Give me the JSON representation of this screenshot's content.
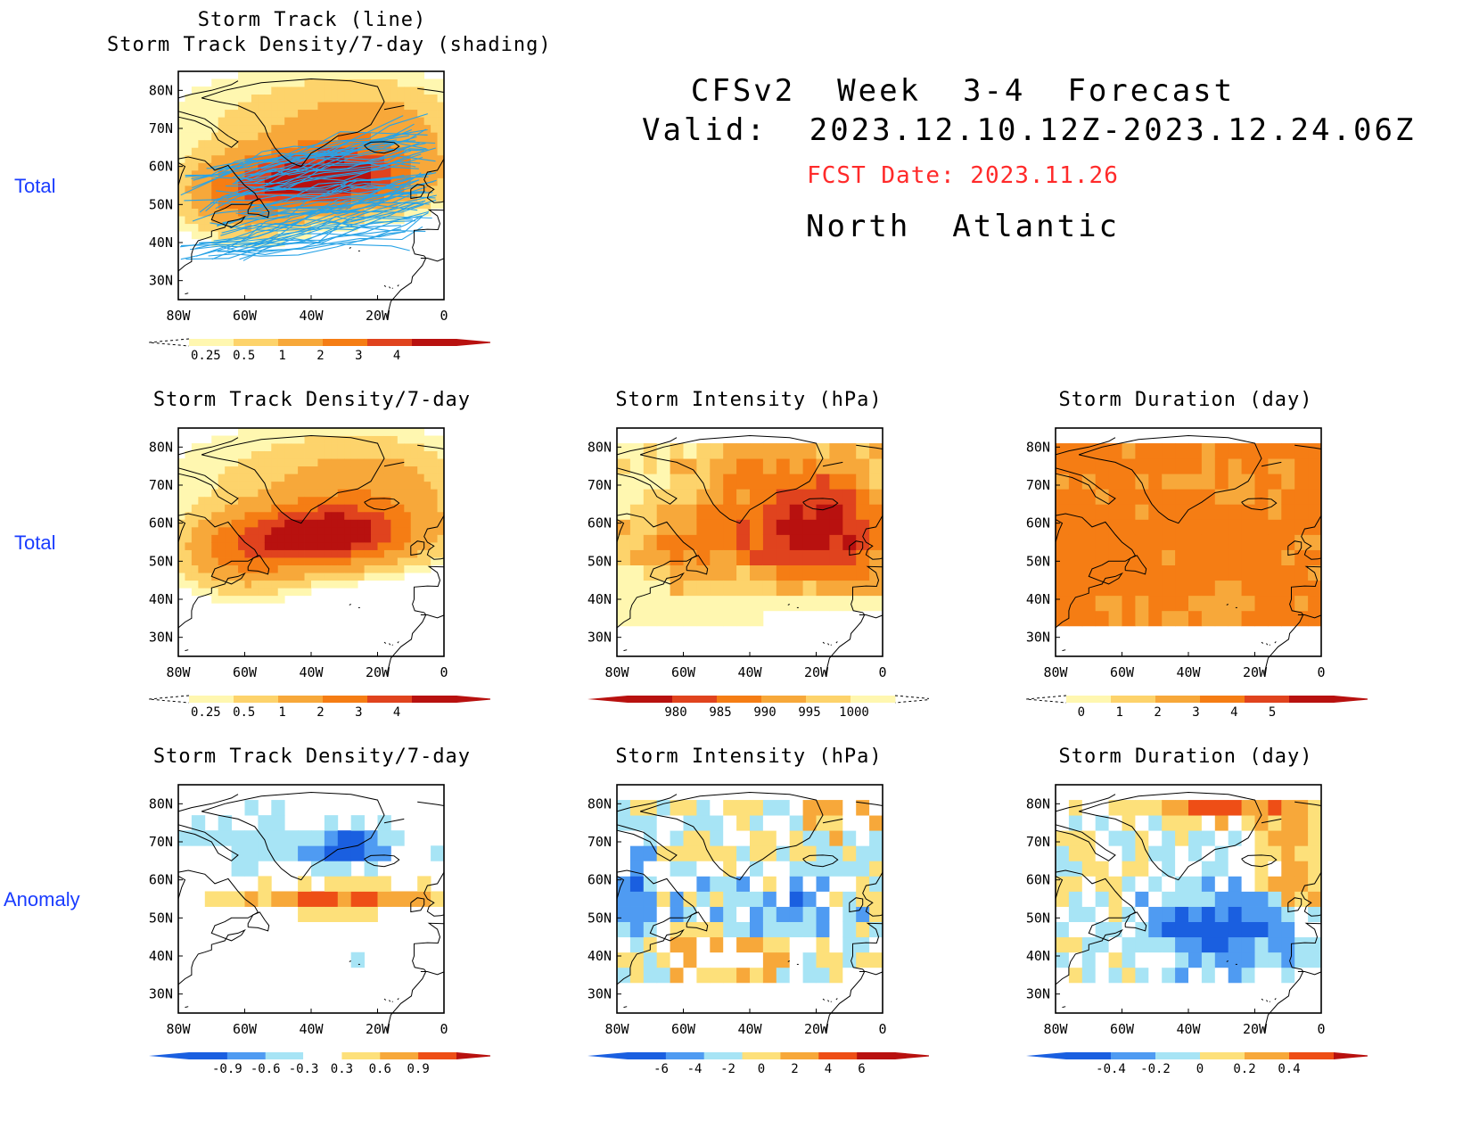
{
  "header": {
    "line1": "CFSv2  Week  3-4  Forecast",
    "line2": "Valid:  2023.12.10.12Z-2023.12.24.06Z",
    "fcst_date": "FCST Date: 2023.11.26",
    "region": "North  Atlantic"
  },
  "row_labels": {
    "top": "Total",
    "middle": "Total",
    "bottom": "Anomaly"
  },
  "axes": {
    "lat_ticks": [
      "80N",
      "70N",
      "60N",
      "50N",
      "40N",
      "30N"
    ],
    "lon_ticks": [
      "80W",
      "60W",
      "40W",
      "20W",
      "0"
    ]
  },
  "panels": {
    "track": {
      "title_line1": "Storm Track (line)",
      "title_line2": "Storm Track Density/7-day (shading)",
      "colorbar": [
        "0.25",
        "0.5",
        "1",
        "2",
        "3",
        "4"
      ]
    },
    "density_total": {
      "title": "Storm Track Density/7-day",
      "colorbar": [
        "0.25",
        "0.5",
        "1",
        "2",
        "3",
        "4"
      ]
    },
    "intensity_total": {
      "title": "Storm Intensity (hPa)",
      "colorbar": [
        "980",
        "985",
        "990",
        "995",
        "1000"
      ]
    },
    "duration_total": {
      "title": "Storm Duration (day)",
      "colorbar": [
        "0",
        "1",
        "2",
        "3",
        "4",
        "5"
      ]
    },
    "density_anom": {
      "title": "Storm Track Density/7-day",
      "colorbar": [
        "-0.9",
        "-0.6",
        "-0.3",
        "0.3",
        "0.6",
        "0.9"
      ]
    },
    "intensity_anom": {
      "title": "Storm Intensity (hPa)",
      "colorbar": [
        "-6",
        "-4",
        "-2",
        "0",
        "2",
        "4",
        "6"
      ]
    },
    "duration_anom": {
      "title": "Storm Duration (day)",
      "colorbar": [
        "-0.4",
        "-0.2",
        "0",
        "0.2",
        "0.4"
      ]
    }
  },
  "colors": {
    "seq": [
      "#fff7b0",
      "#fdd36b",
      "#f7a83a",
      "#f57d14",
      "#e0431e",
      "#b8110f"
    ],
    "div": [
      "#1a5fe0",
      "#4f9bf2",
      "#a7e4f5",
      "#ffffff",
      "#fde07a",
      "#f7a83a",
      "#ee4e16",
      "#b8110f"
    ],
    "track_line": "#29a3e6"
  }
}
